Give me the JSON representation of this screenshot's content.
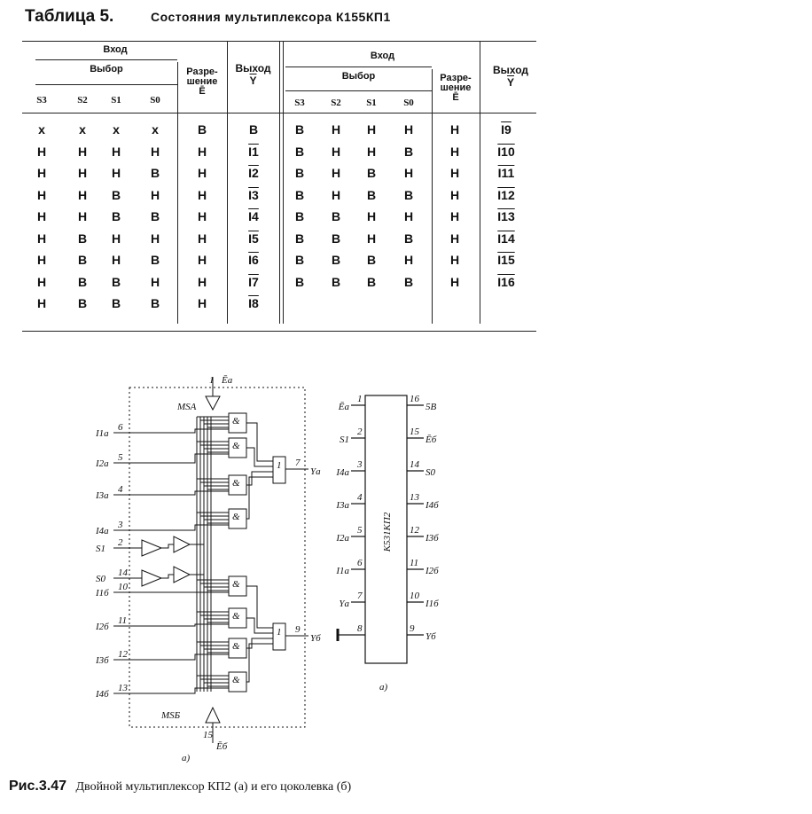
{
  "table": {
    "label": "Таблица 5.",
    "title": "Состояния мультиплексора К155КП1",
    "header": {
      "input": "Вход",
      "select": "Выбор",
      "enable_line1": "Разре-",
      "enable_line2": "шение",
      "enable_symbol": "Ē",
      "output": "Выход",
      "output_symbol": "Y",
      "cols": [
        "S3",
        "S2",
        "S1",
        "S0"
      ]
    },
    "left_rows": [
      [
        "x",
        "x",
        "x",
        "x",
        "В",
        "В"
      ],
      [
        "Н",
        "Н",
        "Н",
        "Н",
        "Н",
        "I1"
      ],
      [
        "Н",
        "Н",
        "Н",
        "В",
        "Н",
        "I2"
      ],
      [
        "Н",
        "Н",
        "В",
        "Н",
        "Н",
        "I3"
      ],
      [
        "Н",
        "Н",
        "В",
        "В",
        "Н",
        "I4"
      ],
      [
        "Н",
        "В",
        "Н",
        "Н",
        "Н",
        "I5"
      ],
      [
        "Н",
        "В",
        "Н",
        "В",
        "Н",
        "I6"
      ],
      [
        "Н",
        "В",
        "В",
        "Н",
        "Н",
        "I7"
      ],
      [
        "Н",
        "В",
        "В",
        "В",
        "Н",
        "I8"
      ]
    ],
    "right_rows": [
      [
        "В",
        "Н",
        "Н",
        "Н",
        "Н",
        "I9"
      ],
      [
        "В",
        "Н",
        "Н",
        "В",
        "Н",
        "I10"
      ],
      [
        "В",
        "Н",
        "В",
        "Н",
        "Н",
        "I11"
      ],
      [
        "В",
        "Н",
        "В",
        "В",
        "Н",
        "I12"
      ],
      [
        "В",
        "В",
        "Н",
        "Н",
        "Н",
        "I13"
      ],
      [
        "В",
        "В",
        "Н",
        "В",
        "Н",
        "I14"
      ],
      [
        "В",
        "В",
        "В",
        "Н",
        "Н",
        "I15"
      ],
      [
        "В",
        "В",
        "В",
        "В",
        "Н",
        "I16"
      ]
    ]
  },
  "logic_diagram": {
    "enable_a": "Ēа",
    "enable_a_pin": "1",
    "enable_b": "Ēб",
    "enable_b_pin": "15",
    "block_a": "MSA",
    "block_b": "MSБ",
    "and_symbol": "&",
    "or_symbol": "1",
    "inputs": [
      {
        "label": "I1а",
        "pin": "6"
      },
      {
        "label": "I2а",
        "pin": "5"
      },
      {
        "label": "I3а",
        "pin": "4"
      },
      {
        "label": "I4а",
        "pin": "3"
      },
      {
        "label": "S1",
        "pin": "2"
      },
      {
        "label": "S0",
        "pin": "14"
      },
      {
        "label": "I1б",
        "pin": "10"
      },
      {
        "label": "I2б",
        "pin": "11"
      },
      {
        "label": "I3б",
        "pin": "12"
      },
      {
        "label": "I4б",
        "pin": "13"
      }
    ],
    "output_a": "Yа",
    "output_a_pin": "7",
    "output_b": "Yб",
    "output_b_pin": "9",
    "caption": "а)"
  },
  "pinout": {
    "chip": "К531КП2",
    "left": [
      {
        "pin": "1",
        "label": "Ēа"
      },
      {
        "pin": "2",
        "label": "S1"
      },
      {
        "pin": "3",
        "label": "I4а"
      },
      {
        "pin": "4",
        "label": "I3а"
      },
      {
        "pin": "5",
        "label": "I2а"
      },
      {
        "pin": "6",
        "label": "I1а"
      },
      {
        "pin": "7",
        "label": "Yа"
      },
      {
        "pin": "8",
        "label": ""
      }
    ],
    "right": [
      {
        "pin": "16",
        "label": "5В"
      },
      {
        "pin": "15",
        "label": "Ēб"
      },
      {
        "pin": "14",
        "label": "S0"
      },
      {
        "pin": "13",
        "label": "I4б"
      },
      {
        "pin": "12",
        "label": "I3б"
      },
      {
        "pin": "11",
        "label": "I2б"
      },
      {
        "pin": "10",
        "label": "I1б"
      },
      {
        "pin": "9",
        "label": "Yб"
      }
    ],
    "caption": "а)"
  },
  "figure_caption": {
    "label": "Рис.3.47",
    "text": "Двойной мультиплексор КП2 (а) и его цоколевка (б)"
  }
}
